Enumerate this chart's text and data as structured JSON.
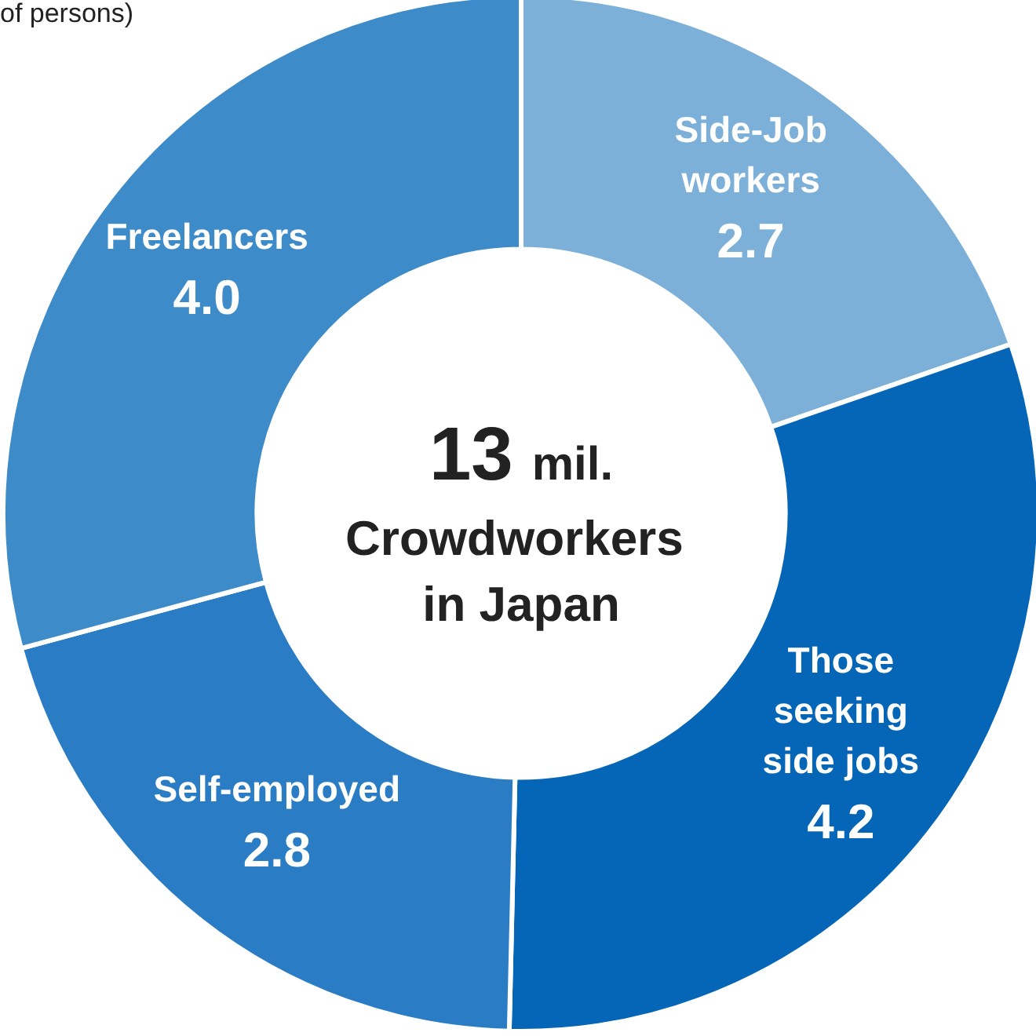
{
  "chart_data": {
    "type": "donut",
    "title": "Crowdworkers in Japan",
    "subtitle": "of persons)",
    "annotations": [
      "13 mil."
    ],
    "categories": [
      "Side-Job workers",
      "Those seeking side jobs",
      "Self-employed",
      "Freelancers"
    ],
    "values": [
      2.7,
      4.2,
      2.8,
      4.0
    ],
    "value_labels": [
      "2.7",
      "4.2",
      "2.8",
      "4.0"
    ],
    "colors": [
      "#7db0d8",
      "#0566b8",
      "#2a7dc4",
      "#3d8bc8"
    ],
    "legend": false
  }
}
